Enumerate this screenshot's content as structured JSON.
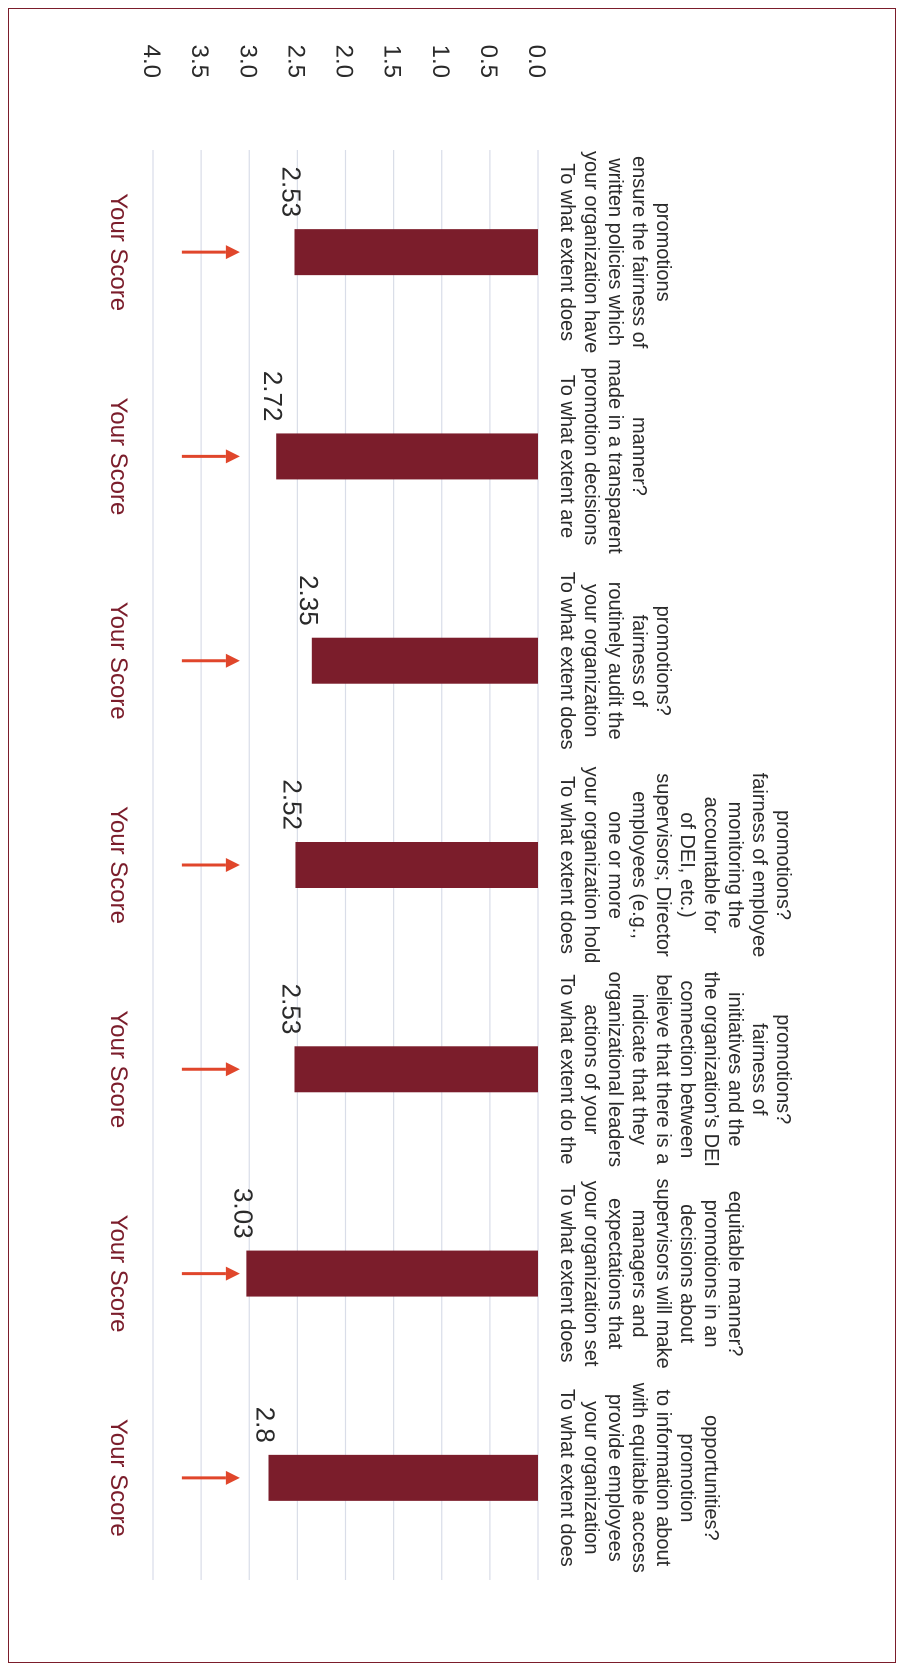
{
  "colors": {
    "bar": "#7b1d2b",
    "marker": "#e0462b",
    "grid": "#d9dde8",
    "text": "#2a2a2a"
  },
  "chart_data": {
    "type": "bar",
    "orientation": "rotated-90-clockwise",
    "ylim": [
      0,
      4
    ],
    "yticks": [
      "0.0",
      "0.5",
      "1.0",
      "1.5",
      "2.0",
      "2.5",
      "3.0",
      "3.5",
      "4.0"
    ],
    "grid": true,
    "categories": [
      "To what extent does your organization have written policies which ensure the fairness of promotions",
      "To what extent are promotion decisions made in a transparent manner?",
      "To what extent does your organization routinely audit the fairness of promotions?",
      "To what extent does your organization hold one or more employees (e.g., supervisors; Director of DEI, etc.) accountable for monitoring the fairness of employee promotions?",
      "To what extent do the actions of your organizational leaders indicate that they believe that there is a connection between the organization’s DEI initiatives and the fairness of promotions?",
      "To what extent does your organization set expectations that managers and supervisors will make decisions about promotions in an equitable manner?",
      "To what extent does your organization provide employees with equitable access to information about promotion opportunities?"
    ],
    "category_lines": [
      [
        "To what extent does",
        "your organization have",
        "written policies which",
        "ensure the fairness of",
        "promotions"
      ],
      [
        "To what extent are",
        "promotion decisions",
        "made in a transparent",
        "manner?"
      ],
      [
        "To what extent does",
        "your organization",
        "routinely audit the",
        "fairness of",
        "promotions?"
      ],
      [
        "To what extent does",
        "your organization hold",
        "one or more",
        "employees (e.g.,",
        "supervisors; Director",
        "of DEI, etc.)",
        "accountable for",
        "monitoring the",
        "fairness of employee",
        "promotions?"
      ],
      [
        "To what extent do the",
        "actions of your",
        "organizational leaders",
        "indicate that they",
        "believe that there is a",
        "connection between",
        "the organization’s DEI",
        "initiatives and the",
        "fairness of",
        "promotions?"
      ],
      [
        "To what extent does",
        "your organization set",
        "expectations that",
        "managers and",
        "supervisors will make",
        "decisions about",
        "promotions in an",
        "equitable manner?"
      ],
      [
        "To what extent does",
        "your organization",
        "provide employees",
        "with equitable access",
        "to information about",
        "promotion",
        "opportunities?"
      ]
    ],
    "values": [
      2.53,
      2.72,
      2.35,
      2.52,
      2.53,
      3.03,
      2.8
    ],
    "value_labels": [
      "2.53",
      "2.72",
      "2.35",
      "2.52",
      "2.53",
      "3.03",
      "2.8"
    ],
    "annotations": {
      "label": "Your Score",
      "score_values": [
        3.7,
        3.7,
        3.7,
        3.7,
        3.7,
        3.7,
        3.7
      ]
    }
  }
}
